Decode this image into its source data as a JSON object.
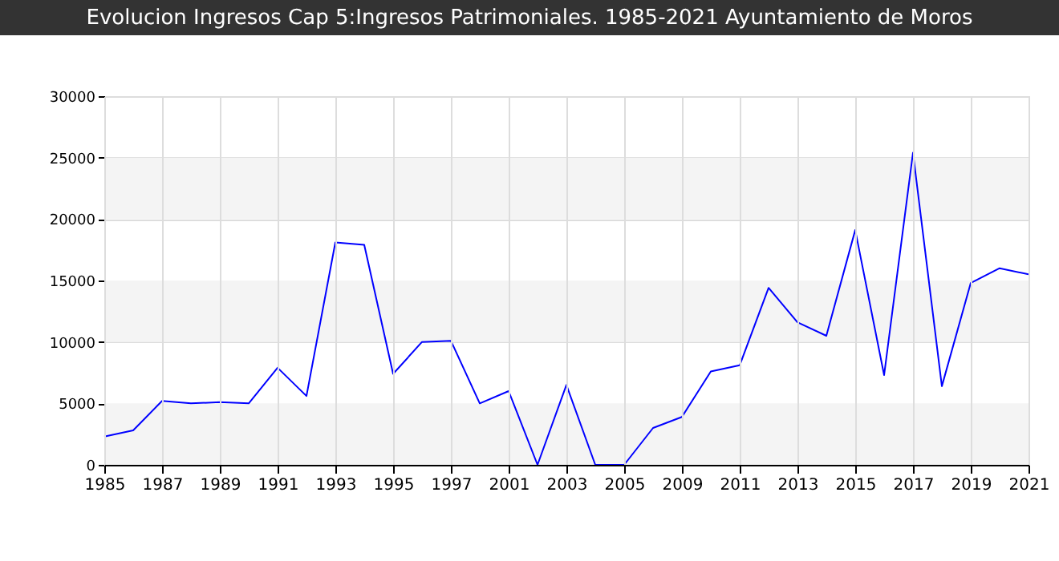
{
  "chart_data": {
    "type": "line",
    "title": "Evolucion Ingresos Cap 5:Ingresos Patrimoniales. 1985-2021 Ayuntamiento de Moros",
    "categories": [
      "1985",
      null,
      "1987",
      null,
      "1989",
      null,
      "1991",
      null,
      "1993",
      null,
      "1995",
      null,
      "1997",
      null,
      "2001",
      null,
      "2003",
      null,
      "2005",
      null,
      "2009",
      null,
      "2011",
      null,
      "2013",
      null,
      "2015",
      null,
      "2017",
      null,
      "2019",
      null,
      "2021"
    ],
    "series": [
      {
        "color": "#0000ff",
        "values": [
          2300,
          2800,
          5200,
          5000,
          5100,
          5000,
          7900,
          5600,
          18100,
          17900,
          7400,
          10000,
          10100,
          5000,
          6000,
          0,
          6500,
          0,
          0,
          3000,
          3900,
          7600,
          8100,
          14400,
          11600,
          10500,
          19100,
          7300,
          25400,
          6400,
          14800,
          16000,
          15500
        ]
      }
    ],
    "ylim": [
      0,
      30000
    ],
    "yticks": [
      0,
      5000,
      10000,
      15000,
      20000,
      25000,
      30000
    ],
    "grid": true,
    "bands": [
      {
        "axis": "y",
        "from": 0,
        "to": 5000,
        "color": "#f4f4f4"
      },
      {
        "axis": "y",
        "from": 10000,
        "to": 15000,
        "color": "#f4f4f4"
      },
      {
        "axis": "y",
        "from": 20000,
        "to": 25000,
        "color": "#f4f4f4"
      }
    ]
  }
}
